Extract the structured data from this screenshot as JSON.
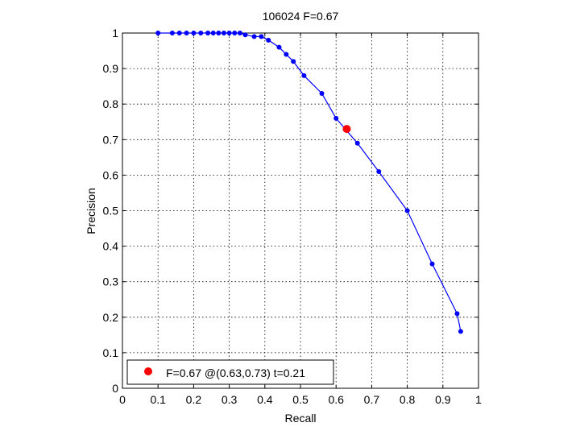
{
  "chart_data": {
    "type": "line",
    "title": "106024 F=0.67",
    "xlabel": "Recall",
    "ylabel": "Precision",
    "xlim": [
      0,
      1
    ],
    "ylim": [
      0,
      1
    ],
    "xticks": [
      "0",
      "0.1",
      "0.2",
      "0.3",
      "0.4",
      "0.5",
      "0.6",
      "0.7",
      "0.8",
      "0.9",
      "1"
    ],
    "yticks": [
      "0",
      "0.1",
      "0.2",
      "0.3",
      "0.4",
      "0.5",
      "0.6",
      "0.7",
      "0.8",
      "0.9",
      "1"
    ],
    "grid": true,
    "legend_position": "bottom-left",
    "series": [
      {
        "color": "#0000ff",
        "marker": "dot",
        "points": [
          [
            0.1,
            1.0
          ],
          [
            0.14,
            1.0
          ],
          [
            0.16,
            1.0
          ],
          [
            0.18,
            1.0
          ],
          [
            0.2,
            1.0
          ],
          [
            0.22,
            1.0
          ],
          [
            0.24,
            1.0
          ],
          [
            0.255,
            1.0
          ],
          [
            0.27,
            1.0
          ],
          [
            0.285,
            1.0
          ],
          [
            0.3,
            1.0
          ],
          [
            0.315,
            1.0
          ],
          [
            0.33,
            1.0
          ],
          [
            0.345,
            0.995
          ],
          [
            0.37,
            0.99
          ],
          [
            0.39,
            0.99
          ],
          [
            0.41,
            0.98
          ],
          [
            0.44,
            0.96
          ],
          [
            0.46,
            0.94
          ],
          [
            0.48,
            0.92
          ],
          [
            0.51,
            0.88
          ],
          [
            0.56,
            0.83
          ],
          [
            0.6,
            0.76
          ],
          [
            0.66,
            0.69
          ],
          [
            0.72,
            0.61
          ],
          [
            0.8,
            0.5
          ],
          [
            0.87,
            0.35
          ],
          [
            0.94,
            0.21
          ],
          [
            0.95,
            0.16
          ]
        ]
      }
    ],
    "highlight": {
      "x": 0.63,
      "y": 0.73,
      "color": "#ff0000"
    },
    "legend_text": "F=0.67 @(0.63,0.73) t=0.21"
  }
}
